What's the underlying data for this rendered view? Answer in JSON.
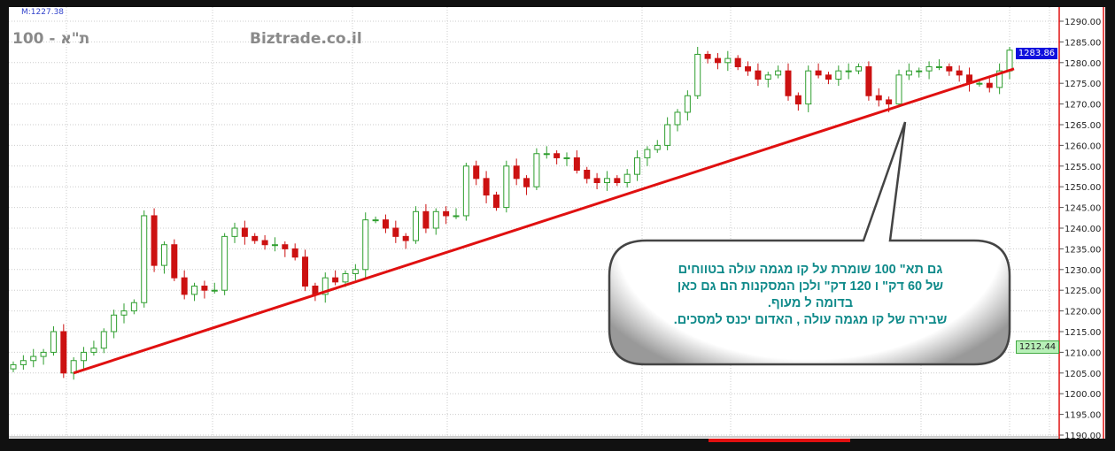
{
  "header": {
    "marker": "M:1227.38",
    "index_name": "ת\"א - 100",
    "site": "Biztrade.co.il"
  },
  "callout": {
    "lines": [
      "גם תא\" 100  שומרת על קו  מגמה  עולה    בטווחים",
      "של 60 דק\" ו 120 דק\"  ולכן   המסקנות הם  גם  כאן",
      "בדומה  ל מעוף.",
      "שבירה  של  קו  מגמה   עולה ,  האדום יכנס  למסכים."
    ]
  },
  "colors": {
    "up": "#2e9e2e",
    "down": "#cc1111",
    "trendline": "#e01010",
    "callout_text": "#0f8a8a",
    "last_price_bg": "#1010dd",
    "marker_bg": "#b8f0b8"
  },
  "price_labels": {
    "last": "1283.86",
    "marker": "1212.44"
  },
  "chart_data": {
    "type": "candlestick",
    "ylim": [
      1190,
      1290
    ],
    "y_ticks": [
      "1290.00",
      "1285.00",
      "1280.00",
      "1275.00",
      "1270.00",
      "1265.00",
      "1260.00",
      "1255.00",
      "1250.00",
      "1245.00",
      "1240.00",
      "1235.00",
      "1230.00",
      "1225.00",
      "1220.00",
      "1215.00",
      "1210.00",
      "1205.00",
      "1200.00",
      "1195.00",
      "1190.00"
    ],
    "grid": true,
    "first_open": 1206,
    "closes": [
      1207,
      1208,
      1209,
      1210,
      1215,
      1205,
      1208,
      1210,
      1211,
      1215,
      1219,
      1220,
      1222,
      1243,
      1231,
      1236,
      1228,
      1224,
      1226,
      1225,
      1225,
      1238,
      1240,
      1238,
      1237,
      1236,
      1236,
      1235,
      1233,
      1226,
      1224,
      1228,
      1227,
      1229,
      1230,
      1242,
      1242,
      1240,
      1238,
      1237,
      1244,
      1240,
      1244,
      1243,
      1243,
      1255,
      1252,
      1248,
      1245,
      1255,
      1252,
      1250,
      1258,
      1258,
      1257,
      1257,
      1254,
      1252,
      1251,
      1252,
      1251,
      1253,
      1257,
      1259,
      1260,
      1265,
      1268,
      1272,
      1282,
      1281,
      1280,
      1281,
      1279,
      1278,
      1276,
      1277,
      1278,
      1272,
      1270,
      1278,
      1277,
      1276,
      1278,
      1278,
      1279,
      1272,
      1271,
      1270,
      1277,
      1278,
      1278,
      1279,
      1279,
      1278,
      1277,
      1275,
      1275,
      1274,
      1278,
      1283
    ],
    "trendline": {
      "start_index": 6,
      "start_value": 1205,
      "end_value": 1278.5
    }
  }
}
